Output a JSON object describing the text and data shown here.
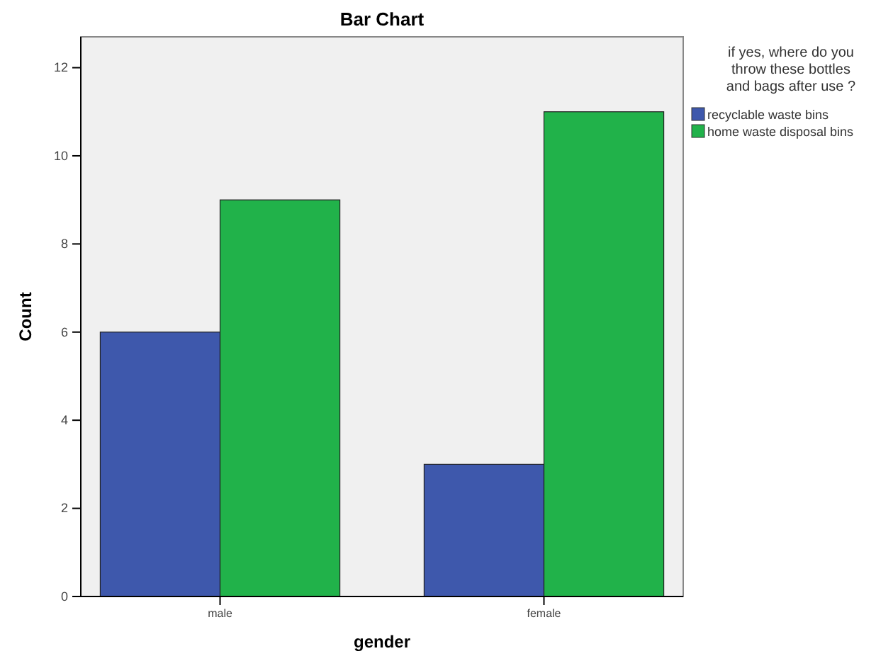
{
  "chart_data": {
    "type": "bar",
    "title": "Bar Chart",
    "xlabel": "gender",
    "ylabel": "Count",
    "legend_title": "if yes, where do you throw these bottles and bags after use ?",
    "categories": [
      "male",
      "female"
    ],
    "series": [
      {
        "name": "recyclable waste bins",
        "color": "#3e58ac",
        "values": [
          6,
          3
        ]
      },
      {
        "name": "home waste disposal bins",
        "color": "#21b24a",
        "values": [
          9,
          11
        ]
      }
    ],
    "ylim": [
      0,
      12.7
    ],
    "yticks": [
      0,
      2,
      4,
      6,
      8,
      10,
      12
    ],
    "grid": false,
    "legend": "right"
  }
}
